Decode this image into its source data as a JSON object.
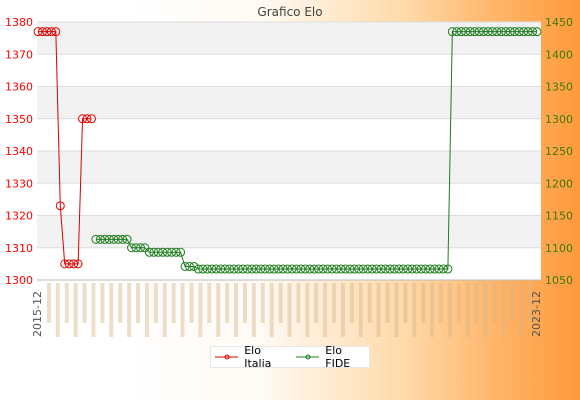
{
  "chart_data": {
    "type": "line",
    "title": "Grafico Elo",
    "y_left": {
      "min": 1300,
      "max": 1380,
      "ticks": [
        1300,
        1310,
        1320,
        1330,
        1340,
        1350,
        1360,
        1370,
        1380
      ],
      "color": "#ff0000"
    },
    "y_right": {
      "min": 1050,
      "max": 1450,
      "ticks": [
        1050,
        1100,
        1150,
        1200,
        1250,
        1300,
        1350,
        1400,
        1450
      ],
      "color": "#3a7d00"
    },
    "x_first_label": "2015-12",
    "x_last_label": "2023-12",
    "grid": true,
    "legend_position": "bottom",
    "series": [
      {
        "name": "Elo Italia",
        "axis": "left",
        "color": "#dd0000",
        "points": [
          [
            0,
            1377
          ],
          [
            1,
            1377
          ],
          [
            2,
            1377
          ],
          [
            3,
            1377
          ],
          [
            4,
            1377
          ],
          [
            5,
            1323
          ],
          [
            6,
            1305
          ],
          [
            7,
            1305
          ],
          [
            8,
            1305
          ],
          [
            9,
            1305
          ],
          [
            10,
            1350
          ],
          [
            11,
            1350
          ],
          [
            12,
            1350
          ]
        ]
      },
      {
        "name": "Elo FIDE",
        "axis": "right",
        "color": "#1d7d1d",
        "segments": [
          {
            "from": 13,
            "to": 20,
            "value": 1113
          },
          {
            "from": 21,
            "to": 24,
            "value": 1100
          },
          {
            "from": 25,
            "to": 32,
            "value": 1093
          },
          {
            "from": 33,
            "to": 35,
            "value": 1071
          },
          {
            "from": 36,
            "to": 92,
            "value": 1067
          },
          {
            "from": 93,
            "to": 112,
            "value": 1435
          }
        ]
      }
    ]
  }
}
